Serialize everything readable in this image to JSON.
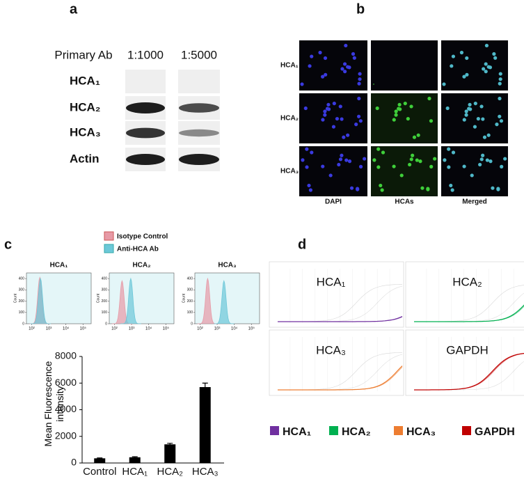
{
  "panel_a": {
    "label": "a",
    "header": {
      "antibody": "Primary Ab",
      "dilutions": [
        "1:1000",
        "1:5000"
      ]
    },
    "rows": [
      "HCA₁",
      "HCA₂",
      "HCA₃",
      "Actin"
    ]
  },
  "panel_b": {
    "label": "b",
    "rows": [
      "HCA₁",
      "HCA₂",
      "HCA₃"
    ],
    "columns": [
      "DAPI",
      "HCAs",
      "Merged"
    ]
  },
  "panel_c": {
    "label": "c",
    "legend": [
      {
        "name": "Isotype Control",
        "color": "#e79aa6"
      },
      {
        "name": "Anti-HCA Ab",
        "color": "#6cc8d8"
      }
    ],
    "histograms": {
      "ylabel": "Count",
      "ylim": [
        0,
        450
      ],
      "yticks": [
        0,
        100,
        200,
        300,
        400
      ],
      "xlim": [
        50,
        300000
      ],
      "xticks": [
        {
          "value": 100,
          "label": "10²"
        },
        {
          "value": 1000,
          "label": "10³"
        },
        {
          "value": 10000,
          "label": "10⁴"
        },
        {
          "value": 100000,
          "label": "10⁵"
        }
      ],
      "plots": [
        {
          "title": "HCA₁",
          "peaks": [
            300,
            330
          ],
          "heights": [
            410,
            400
          ]
        },
        {
          "title": "HCA₂",
          "peaks": [
            280,
            900
          ],
          "heights": [
            380,
            400
          ]
        },
        {
          "title": "HCA₃",
          "peaks": [
            280,
            2500
          ],
          "heights": [
            400,
            380
          ]
        }
      ]
    }
  },
  "chart_data": {
    "type": "bar",
    "ylabel": "Mean Fluorescence intensity",
    "categories": [
      "Control",
      "HCA₁",
      "HCA₂",
      "HCA₃"
    ],
    "values": [
      350,
      430,
      1400,
      5700
    ],
    "errors": [
      30,
      40,
      80,
      300
    ],
    "color": "#000000",
    "ylim": [
      0,
      8000
    ],
    "yticks": [
      0,
      2000,
      4000,
      6000,
      8000
    ]
  },
  "panel_d": {
    "label": "d",
    "plots": [
      "HCA₁",
      "HCA₂",
      "HCA₃",
      "GAPDH"
    ],
    "legend": [
      {
        "name": "HCA₁",
        "color": "#7030a0"
      },
      {
        "name": "HCA₂",
        "color": "#00b050"
      },
      {
        "name": "HCA₃",
        "color": "#ed7d31"
      },
      {
        "name": "GAPDH",
        "color": "#c00000"
      }
    ]
  }
}
